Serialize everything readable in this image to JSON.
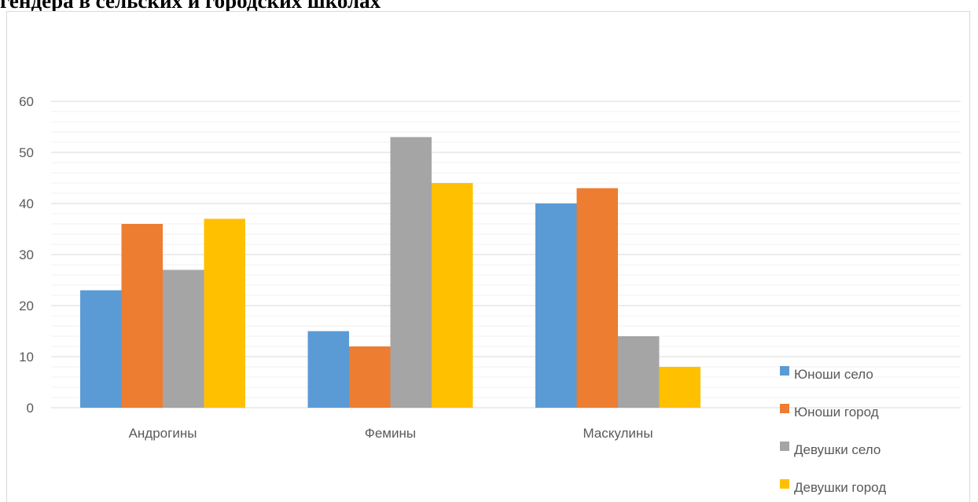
{
  "page": {
    "heading": "гендера в сельских и городских школах"
  },
  "chart_data": {
    "type": "bar",
    "title": "",
    "xlabel": "",
    "ylabel": "",
    "categories": [
      "Андрогины",
      "Фемины",
      "Маскулины"
    ],
    "ylim": [
      0,
      60
    ],
    "yticks": [
      0,
      10,
      20,
      30,
      40,
      50,
      60
    ],
    "grid": true,
    "legend_position": "right",
    "series": [
      {
        "name": "Юноши село",
        "color": "#5b9bd5",
        "values": [
          23,
          15,
          40
        ]
      },
      {
        "name": "Юноши город",
        "color": "#ed7d31",
        "values": [
          36,
          12,
          43
        ]
      },
      {
        "name": "Девушки село",
        "color": "#a5a5a5",
        "values": [
          27,
          53,
          14
        ]
      },
      {
        "name": "Девушки город",
        "color": "#ffc000",
        "values": [
          37,
          44,
          8
        ]
      }
    ]
  }
}
